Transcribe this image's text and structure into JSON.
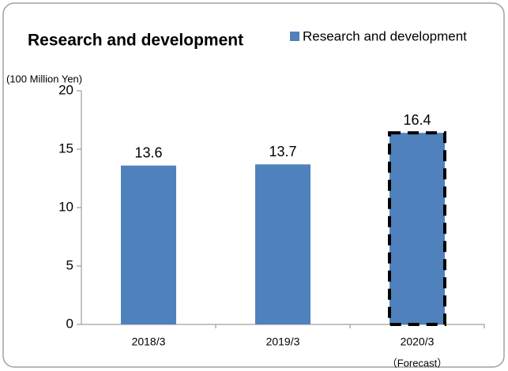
{
  "chart_data": {
    "type": "bar",
    "title": "Research and development",
    "y_axis_label": "(100 Million Yen)",
    "categories": [
      "2018/3",
      "2019/3",
      "2020/3"
    ],
    "series": [
      {
        "name": "Research and development",
        "color": "#4f81bd",
        "values": [
          13.6,
          13.7,
          16.4
        ]
      }
    ],
    "ylim": [
      0,
      20
    ],
    "yticks": [
      0,
      5,
      10,
      15,
      20
    ],
    "grid": false,
    "legend": "top-right",
    "annotations": [
      {
        "text": "（Forecast）",
        "category": 2
      }
    ]
  }
}
